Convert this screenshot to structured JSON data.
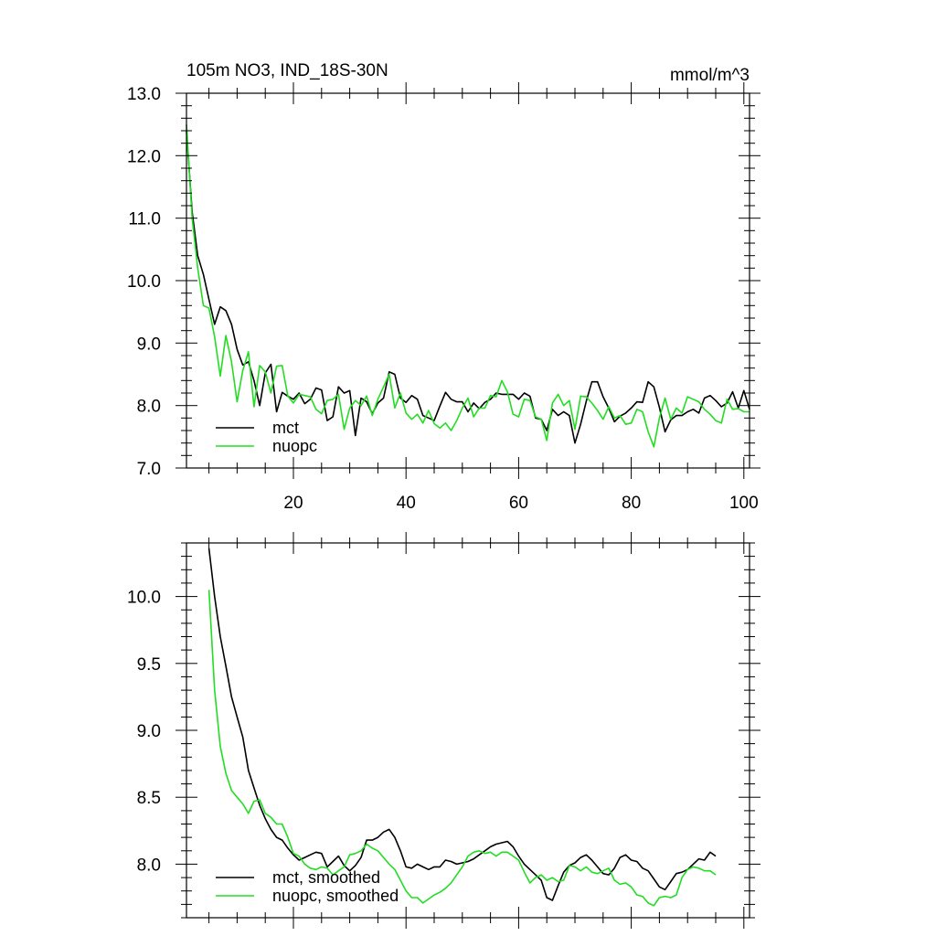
{
  "colors": {
    "mct": "#000000",
    "nuopc": "#22dd22",
    "background": "#ffffff"
  },
  "chart_data": [
    {
      "type": "line",
      "title": "105m NO3, IND_18S-30N",
      "units": "mmol/m^3",
      "xlim": [
        1,
        101
      ],
      "ylim": [
        7.0,
        13.0
      ],
      "x_ticks": [
        20,
        40,
        60,
        80,
        100
      ],
      "y_ticks": [
        7.0,
        8.0,
        9.0,
        10.0,
        11.0,
        12.0,
        13.0
      ],
      "y_tick_labels": [
        "7.0",
        "8.0",
        "9.0",
        "10.0",
        "11.0",
        "12.0",
        "13.0"
      ],
      "x_tick_labels": [
        "20",
        "40",
        "60",
        "80",
        "100"
      ],
      "legend": {
        "position": "bottom-left",
        "entries": [
          "mct",
          "nuopc"
        ]
      },
      "series": [
        {
          "name": "mct",
          "color": "#000000",
          "x_start": 1,
          "values": [
            12.4,
            11.1,
            10.4,
            10.1,
            9.7,
            9.3,
            9.58,
            9.52,
            9.3,
            8.9,
            8.65,
            8.7,
            8.4,
            8.0,
            8.52,
            8.66,
            7.9,
            8.21,
            8.15,
            8.1,
            8.2,
            8.03,
            8.1,
            8.28,
            8.25,
            7.76,
            7.82,
            8.3,
            8.2,
            8.24,
            7.52,
            8.12,
            8.06,
            7.87,
            8.04,
            8.12,
            8.54,
            8.5,
            8.12,
            8.05,
            8.16,
            8.1,
            7.84,
            7.8,
            7.76,
            7.99,
            8.21,
            8.1,
            8.06,
            8.06,
            7.9,
            8.04,
            7.95,
            8.05,
            8.1,
            8.2,
            8.18,
            8.18,
            8.18,
            8.1,
            8.2,
            8.15,
            7.8,
            7.78,
            7.6,
            7.94,
            7.84,
            7.9,
            7.84,
            7.4,
            7.7,
            8.07,
            8.38,
            8.38,
            8.14,
            7.96,
            7.74,
            7.83,
            7.88,
            7.96,
            8.06,
            8.05,
            8.38,
            8.3,
            7.97,
            7.58,
            7.77,
            7.84,
            7.84,
            7.9,
            7.94,
            7.88,
            8.12,
            8.16,
            8.08,
            7.98,
            8.04,
            8.22,
            7.96,
            8.24,
            7.94
          ]
        },
        {
          "name": "nuopc",
          "color": "#22dd22",
          "x_start": 1,
          "values": [
            12.5,
            11.0,
            10.2,
            9.6,
            9.56,
            9.1,
            8.47,
            9.12,
            8.7,
            8.06,
            8.56,
            8.86,
            7.98,
            8.64,
            8.54,
            8.2,
            8.63,
            8.64,
            8.15,
            8.04,
            8.18,
            8.16,
            8.14,
            7.94,
            7.87,
            8.08,
            8.1,
            8.18,
            7.62,
            7.96,
            8.08,
            8.0,
            8.15,
            7.84,
            8.1,
            8.3,
            8.5,
            7.96,
            8.2,
            7.88,
            7.78,
            7.86,
            7.72,
            7.92,
            7.71,
            7.64,
            7.72,
            7.6,
            7.76,
            7.96,
            8.12,
            7.82,
            7.96,
            7.96,
            8.16,
            8.14,
            8.4,
            8.22,
            7.86,
            7.82,
            8.1,
            8.08,
            7.82,
            7.78,
            7.44,
            8.04,
            8.18,
            8.0,
            8.08,
            7.62,
            8.15,
            8.14,
            8.04,
            7.92,
            7.78,
            7.98,
            7.8,
            7.84,
            7.7,
            7.72,
            7.94,
            7.9,
            7.58,
            7.34,
            7.8,
            8.12,
            7.78,
            7.96,
            7.88,
            8.14,
            8.1,
            8.06,
            7.94,
            7.86,
            7.76,
            7.72,
            8.1,
            7.94,
            7.95,
            7.9,
            7.9
          ]
        }
      ]
    },
    {
      "type": "line",
      "xlim": [
        1,
        101
      ],
      "ylim": [
        7.6,
        10.4
      ],
      "x_ticks": [
        20,
        40,
        60,
        80,
        100
      ],
      "y_ticks": [
        8.0,
        8.5,
        9.0,
        9.5,
        10.0
      ],
      "y_tick_labels": [
        "8.0",
        "8.5",
        "9.0",
        "9.5",
        "10.0"
      ],
      "legend": {
        "position": "bottom-left",
        "entries": [
          "mct, smoothed",
          "nuopc, smoothed"
        ]
      },
      "series": [
        {
          "name": "mct, smoothed",
          "color": "#000000",
          "x_start": 5,
          "values": [
            10.36,
            10.0,
            9.7,
            9.48,
            9.25,
            9.1,
            8.95,
            8.7,
            8.57,
            8.44,
            8.34,
            8.26,
            8.2,
            8.18,
            8.12,
            8.07,
            8.03,
            8.05,
            8.07,
            8.09,
            8.08,
            7.98,
            8.02,
            8.06,
            7.99,
            7.95,
            7.99,
            8.05,
            8.18,
            8.18,
            8.2,
            8.24,
            8.26,
            8.2,
            8.1,
            7.98,
            7.97,
            8.0,
            7.98,
            7.96,
            7.98,
            7.98,
            8.03,
            8.02,
            8.0,
            8.01,
            8.02,
            8.04,
            8.07,
            8.1,
            8.13,
            8.15,
            8.16,
            8.17,
            8.13,
            8.06,
            8.0,
            7.96,
            7.92,
            7.88,
            7.75,
            7.73,
            7.84,
            7.94,
            7.99,
            8.01,
            8.05,
            8.07,
            8.03,
            7.98,
            7.93,
            7.92,
            7.97,
            8.05,
            8.07,
            8.03,
            8.02,
            7.97,
            7.95,
            7.89,
            7.83,
            7.81,
            7.87,
            7.93,
            7.94,
            7.96,
            8.0,
            8.04,
            8.03,
            8.09,
            8.06
          ]
        },
        {
          "name": "nuopc, smoothed",
          "color": "#22dd22",
          "x_start": 5,
          "values": [
            10.05,
            9.3,
            8.88,
            8.68,
            8.55,
            8.5,
            8.45,
            8.38,
            8.47,
            8.48,
            8.38,
            8.35,
            8.3,
            8.3,
            8.2,
            8.08,
            8.06,
            8.0,
            7.97,
            7.96,
            7.98,
            7.97,
            7.92,
            7.95,
            7.98,
            8.07,
            8.08,
            8.1,
            8.15,
            8.12,
            8.1,
            8.05,
            8.0,
            7.96,
            7.88,
            7.8,
            7.75,
            7.75,
            7.71,
            7.74,
            7.77,
            7.79,
            7.82,
            7.86,
            7.92,
            7.98,
            8.06,
            8.09,
            8.1,
            8.08,
            8.09,
            8.06,
            8.09,
            8.09,
            8.06,
            8.03,
            7.94,
            7.86,
            7.9,
            7.92,
            7.88,
            7.9,
            7.87,
            7.88,
            7.99,
            7.98,
            7.95,
            7.98,
            7.94,
            7.93,
            7.95,
            7.97,
            7.88,
            7.85,
            7.86,
            7.83,
            7.77,
            7.76,
            7.71,
            7.69,
            7.75,
            7.76,
            7.75,
            7.77,
            7.9,
            7.96,
            7.98,
            7.97,
            7.95,
            7.95,
            7.92
          ]
        }
      ]
    }
  ]
}
